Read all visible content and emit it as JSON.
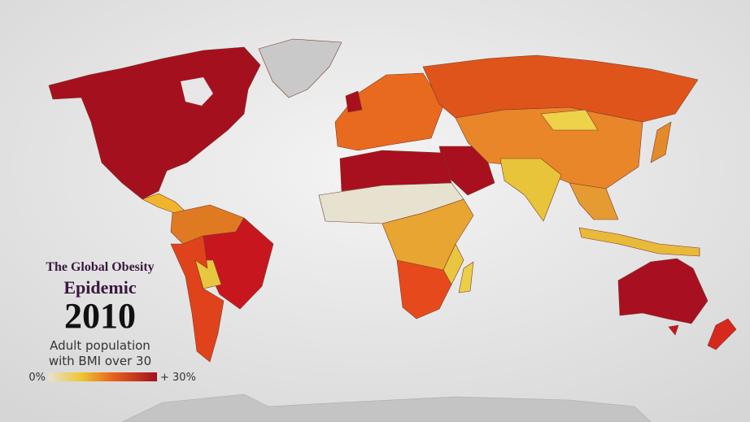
{
  "title": {
    "line1": "The Global Obesity",
    "line2": "Epidemic",
    "year": "2010"
  },
  "legend": {
    "caption_line1": "Adult population",
    "caption_line2": "with BMI over 30",
    "min_label": "0%",
    "max_label": "+ 30%"
  }
}
